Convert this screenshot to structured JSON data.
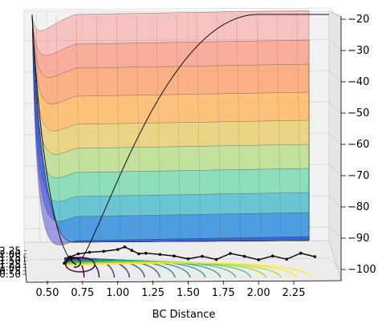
{
  "chart_data": {
    "type": "surface",
    "title": "",
    "xlabel": "BC Distance",
    "ylabel": "",
    "zlabel": "",
    "x_ticks": [
      0.5,
      0.75,
      1.0,
      1.25,
      1.5,
      1.75,
      2.0,
      2.25
    ],
    "x_tick_labels": [
      "0.50",
      "0.75",
      "1.00",
      "1.25",
      "1.50",
      "1.75",
      "2.00",
      "2.25"
    ],
    "y_tick_labels": [
      "0.50",
      "0.75",
      "1.00",
      "1.25",
      "1.50",
      "1.75",
      "2.00",
      "2.25"
    ],
    "z_ticks": [
      -100,
      -90,
      -80,
      -70,
      -60,
      -50,
      -40,
      -30,
      -20
    ],
    "z_tick_labels": [
      "−100",
      "−90",
      "−80",
      "−70",
      "−60",
      "−50",
      "−40",
      "−30",
      "−20"
    ],
    "xlim": [
      0.35,
      2.45
    ],
    "zlim": [
      -103,
      -18
    ],
    "surface_colormap": "jet",
    "contour_colormap": "viridis",
    "trajectory": {
      "color": "#000000",
      "x": [
        0.62,
        0.66,
        0.72,
        0.8,
        0.9,
        1.0,
        1.05,
        1.1,
        1.15,
        1.2,
        1.3,
        1.4,
        1.5,
        1.6,
        1.7,
        1.8,
        1.9,
        2.0,
        2.1,
        2.2,
        2.3,
        2.4
      ],
      "z": [
        -98,
        -96,
        -95,
        -94.5,
        -94.2,
        -93.6,
        -92.8,
        -93.9,
        -95,
        -94.8,
        -95.2,
        -95.7,
        -96.6,
        -95.8,
        -96.8,
        -94.9,
        -95.8,
        -96.9,
        -95.7,
        -96.7,
        -94.8,
        -95.9
      ]
    },
    "grid": true
  }
}
